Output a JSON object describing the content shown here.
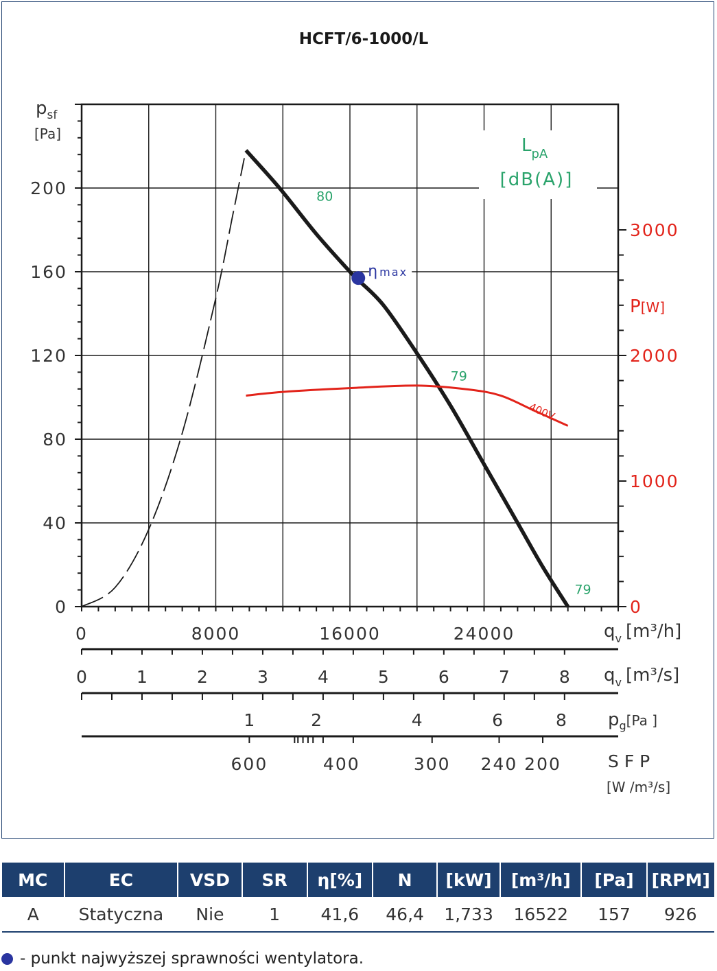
{
  "chart_data": {
    "type": "line",
    "title": "HCFT/6-1000/L",
    "xlabel": "q",
    "xlabel_sub": "v",
    "xlabel_unit": "[m³/h]",
    "ylabel": "p",
    "ylabel_sub": "sf",
    "ylabel_unit": "[Pa]",
    "xlim": [
      0,
      32000
    ],
    "ylim": [
      0,
      240
    ],
    "x_ticks": [
      0,
      8000,
      16000,
      24000
    ],
    "y_ticks": [
      0,
      40,
      80,
      120,
      160,
      200
    ],
    "grid": true,
    "y2label": "P",
    "y2label_unit": "[W]",
    "y2lim": [
      0,
      4000
    ],
    "y2_ticks": [
      0,
      1000,
      2000,
      3000
    ],
    "lpa_label": "L",
    "lpa_sub": "pA",
    "lpa_unit": "[dB(A)]",
    "series": [
      {
        "role": "pressure",
        "color": "#1a1a1a",
        "x": [
          9800,
          11800,
          14000,
          16000,
          16500,
          18000,
          20000,
          22000,
          24000,
          26000,
          27500,
          29000
        ],
        "y": [
          218,
          200,
          178,
          160,
          156,
          144,
          121,
          96,
          68,
          40,
          19,
          0
        ]
      },
      {
        "role": "system-curve",
        "color": "#1a1a1a",
        "dashed": true,
        "x": [
          0,
          2000,
          4000,
          6000,
          8000,
          9000,
          9700
        ],
        "y": [
          0,
          9.2,
          36.9,
          82.9,
          147.4,
          186.6,
          214.3
        ]
      },
      {
        "name": "400V",
        "role": "power",
        "axis": "y2",
        "color": "#e2231a",
        "x": [
          9800,
          12000,
          16000,
          20000,
          23000,
          25000,
          27000,
          29000
        ],
        "y": [
          1680,
          1710,
          1740,
          1760,
          1730,
          1680,
          1560,
          1440
        ]
      }
    ],
    "lpa_labels": [
      {
        "text": "80",
        "x": 14000,
        "y": 194
      },
      {
        "text": "79",
        "x": 22000,
        "y": 108
      },
      {
        "text": "79",
        "x": 29400,
        "y": 6
      }
    ],
    "eta_max": {
      "x": 16500,
      "y": 157,
      "label": "η",
      "label_sub": "max",
      "color": "#2a35a0"
    },
    "secondary_axes": [
      {
        "name": "qv-m3s",
        "label": "q",
        "sub": "v",
        "unit": "[m³/s]",
        "ticks": [
          "0",
          "1",
          "2",
          "3",
          "4",
          "5",
          "6",
          "7",
          "8"
        ],
        "positions_m3h": [
          0,
          3600,
          7200,
          10800,
          14400,
          18000,
          21600,
          25200,
          28800
        ]
      },
      {
        "name": "pg",
        "label": "p",
        "sub": "g",
        "unit": "[Pa ]",
        "ticks": [
          "1",
          "2",
          "4",
          "6",
          "8"
        ],
        "positions_m3h": [
          10000,
          14000,
          20000,
          24800,
          28600
        ]
      },
      {
        "name": "sfp",
        "label": "S F P",
        "unit": "[W /m³/s]",
        "ticks": [
          "600",
          "400",
          "300",
          "240",
          "200"
        ],
        "positions_m3h": [
          10000,
          15500,
          20900,
          24900,
          27500
        ]
      }
    ]
  },
  "table": {
    "headers": [
      "MC",
      "EC",
      "VSD",
      "SR",
      "η[%]",
      "N",
      "[kW]",
      "[m³/h]",
      "[Pa]",
      "[RPM]"
    ],
    "row": [
      "A",
      "Statyczna",
      "Nie",
      "1",
      "41,6",
      "46,4",
      "1,733",
      "16522",
      "157",
      "926"
    ]
  },
  "legend_note": {
    "text": "- punkt najwyższej sprawności wentylatora.",
    "dot_color": "#2a35a0"
  }
}
